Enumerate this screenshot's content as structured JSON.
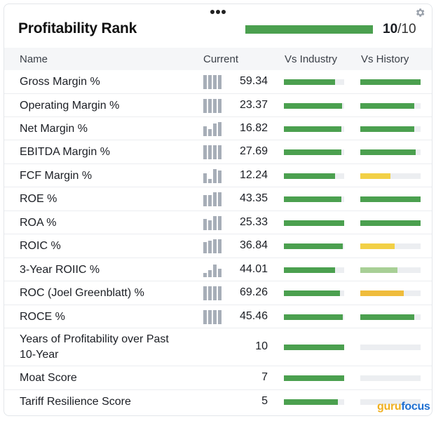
{
  "header": {
    "title": "Profitability Rank",
    "rank": "10",
    "rank_den": "/10",
    "rank_fraction": 1.0,
    "menu_icon": "more-horizontal-icon",
    "settings_icon": "gear-icon"
  },
  "columns": {
    "name": "Name",
    "current": "Current",
    "industry": "Vs Industry",
    "history": "Vs History"
  },
  "colors": {
    "green": "#4ba04f",
    "light_green": "#a8cf96",
    "yellow": "#f2d046",
    "orange": "#efbc3c",
    "track": "#eceef1",
    "spark": "#a7aeb8"
  },
  "rows": [
    {
      "name": "Gross Margin %",
      "value": "59.34",
      "spark": [
        1,
        1,
        1,
        1
      ],
      "industry": 0.85,
      "history": 1.0,
      "history_color": "green"
    },
    {
      "name": "Operating Margin %",
      "value": "23.37",
      "spark": [
        1,
        1,
        1,
        1
      ],
      "industry": 0.97,
      "history": 0.9,
      "history_color": "green"
    },
    {
      "name": "Net Margin %",
      "value": "16.82",
      "spark": [
        0.7,
        0.5,
        0.9,
        1
      ],
      "industry": 0.95,
      "history": 0.9,
      "history_color": "green"
    },
    {
      "name": "EBITDA Margin %",
      "value": "27.69",
      "spark": [
        1,
        1,
        1,
        1
      ],
      "industry": 0.95,
      "history": 0.92,
      "history_color": "green"
    },
    {
      "name": "FCF Margin %",
      "value": "12.24",
      "spark": [
        0.7,
        0.3,
        1,
        0.9
      ],
      "industry": 0.85,
      "history": 0.5,
      "history_color": "yellow"
    },
    {
      "name": "ROE %",
      "value": "43.35",
      "spark": [
        0.8,
        0.8,
        1,
        1
      ],
      "industry": 0.95,
      "history": 1.0,
      "history_color": "green"
    },
    {
      "name": "ROA %",
      "value": "25.33",
      "spark": [
        0.8,
        0.7,
        1,
        1
      ],
      "industry": 1.0,
      "history": 1.0,
      "history_color": "green"
    },
    {
      "name": "ROIC %",
      "value": "36.84",
      "spark": [
        0.8,
        0.9,
        1,
        1
      ],
      "industry": 0.98,
      "history": 0.57,
      "history_color": "yellow"
    },
    {
      "name": "3-Year ROIIC %",
      "value": "44.01",
      "spark": [
        0.3,
        0.5,
        0.9,
        0.6
      ],
      "industry": 0.85,
      "history": 0.62,
      "history_color": "light_green"
    },
    {
      "name": "ROC (Joel Greenblatt) %",
      "value": "69.26",
      "spark": [
        1,
        1,
        1,
        1
      ],
      "industry": 0.93,
      "history": 0.72,
      "history_color": "orange"
    },
    {
      "name": "ROCE %",
      "value": "45.46",
      "spark": [
        1,
        1,
        1,
        1
      ],
      "industry": 0.98,
      "history": 0.9,
      "history_color": "green"
    },
    {
      "name": "Years of Profitability over Past 10-Year",
      "value": "10",
      "spark": null,
      "industry": 1.0,
      "history": 0,
      "history_color": "green"
    },
    {
      "name": "Moat Score",
      "value": "7",
      "spark": null,
      "industry": 1.0,
      "history": 0,
      "history_color": "green"
    },
    {
      "name": "Tariff Resilience Score",
      "value": "5",
      "spark": null,
      "industry": 0.9,
      "history": 0,
      "history_color": "green"
    }
  ],
  "footer": {
    "logo_a": "guru",
    "logo_b": "focus"
  }
}
